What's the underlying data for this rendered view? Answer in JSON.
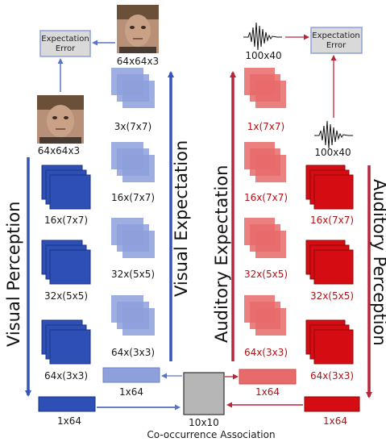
{
  "visual": {
    "perception_title": "Visual Perception",
    "expectation_title": "Visual Expectation",
    "input_size": "64x64x3",
    "output_size": "64x64x3",
    "error_box": "Expectation Error",
    "perception_layers": [
      "16x(7x7)",
      "32x(5x5)",
      "64x(3x3)"
    ],
    "perception_vector": "1x64",
    "expectation_layers": [
      "3x(7x7)",
      "16x(7x7)",
      "32x(5x5)",
      "64x(3x3)"
    ],
    "expectation_vector": "1x64"
  },
  "auditory": {
    "perception_title": "Auditory Perception",
    "expectation_title": "Auditory Expectation",
    "input_size": "100x40",
    "output_size": "100x40",
    "error_box": "Expectation Error",
    "perception_layers": [
      "16x(7x7)",
      "32x(5x5)",
      "64x(3x3)"
    ],
    "perception_vector": "1x64",
    "expectation_layers": [
      "1x(7x7)",
      "16x(7x7)",
      "32x(5x5)",
      "64x(3x3)"
    ],
    "expectation_vector": "1x64"
  },
  "association": {
    "size": "10x10",
    "title": "Co-occurrence Association"
  },
  "colors": {
    "visual_dark": "#2e4fb5",
    "visual_light": "#8da0dc",
    "visual_arrow": "#3555b8",
    "audio_dark": "#d50d12",
    "audio_light": "#e86a6a",
    "audio_arrow": "#b6273a",
    "assoc_fill": "#b6b6b6",
    "error_fill": "#d9d9d9"
  }
}
